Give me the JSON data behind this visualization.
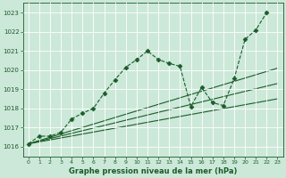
{
  "bg_color": "#cce8d8",
  "grid_color": "#ffffff",
  "line_color": "#1a5c2a",
  "xlabel": "Graphe pression niveau de la mer (hPa)",
  "xlim": [
    -0.5,
    23.5
  ],
  "ylim": [
    1015.5,
    1023.5
  ],
  "yticks": [
    1016,
    1017,
    1018,
    1019,
    1020,
    1021,
    1022,
    1023
  ],
  "xticks": [
    0,
    1,
    2,
    3,
    4,
    5,
    6,
    7,
    8,
    9,
    10,
    11,
    12,
    13,
    14,
    15,
    16,
    17,
    18,
    19,
    20,
    21,
    22,
    23
  ],
  "series": [
    {
      "x": [
        0,
        1,
        2,
        3,
        4,
        5,
        6,
        7,
        8,
        9,
        10,
        11,
        12,
        13,
        14,
        15,
        16,
        17,
        18,
        19,
        20,
        21,
        22,
        23
      ],
      "y": [
        1016.15,
        1016.55,
        1016.55,
        1016.75,
        1017.45,
        1017.75,
        1018.0,
        1018.8,
        1019.5,
        1020.15,
        1020.55,
        1021.0,
        1020.55,
        1020.35,
        1020.2,
        1018.1,
        1019.1,
        1018.3,
        1018.15,
        1019.55,
        1021.6,
        1022.1,
        1023.0,
        null
      ],
      "linestyle": "--",
      "marker": "D",
      "markersize": 2.5
    },
    {
      "x": [
        0,
        23
      ],
      "y": [
        1016.15,
        1018.5
      ],
      "linestyle": "-",
      "marker": null,
      "markersize": 0
    },
    {
      "x": [
        0,
        23
      ],
      "y": [
        1016.15,
        1019.3
      ],
      "linestyle": "-",
      "marker": null,
      "markersize": 0
    },
    {
      "x": [
        0,
        23
      ],
      "y": [
        1016.15,
        1020.1
      ],
      "linestyle": "-",
      "marker": null,
      "markersize": 0
    }
  ]
}
